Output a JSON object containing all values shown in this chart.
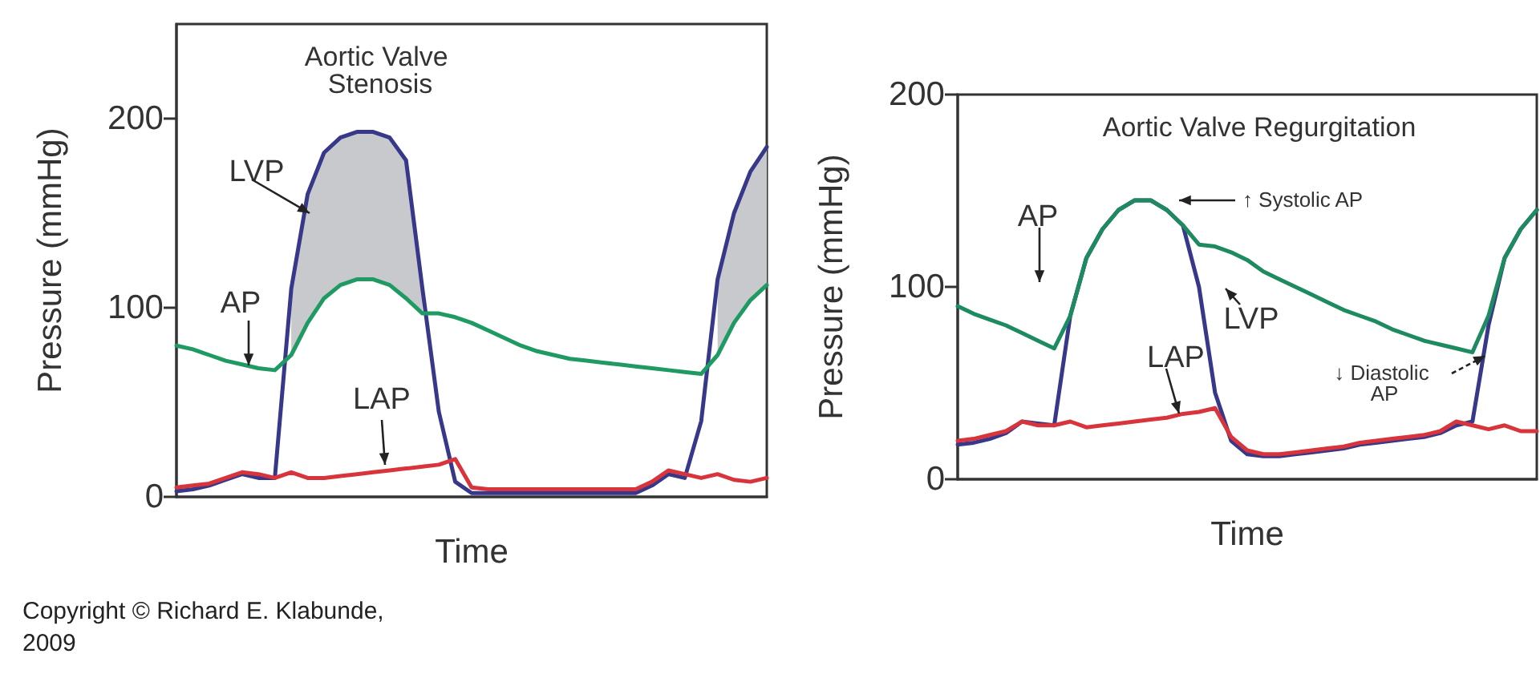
{
  "chart_data": [
    {
      "type": "line",
      "title": "Aortic Valve Stenosis",
      "xlabel": "Time",
      "ylabel": "Pressure (mmHg)",
      "categories": [
        null,
        null,
        null,
        null,
        null,
        null,
        null,
        null,
        null,
        null,
        null,
        null,
        null,
        null,
        null,
        null,
        null,
        null,
        null,
        null,
        null,
        null,
        null,
        null,
        null,
        null,
        null,
        null,
        null,
        null,
        null,
        null,
        null,
        null,
        null,
        null,
        null
      ],
      "ylim": [
        0,
        250
      ],
      "yticks": [
        0,
        100,
        200
      ],
      "tick_labels": "y",
      "series": [
        {
          "name": "LVP",
          "color": "#38388a",
          "values": [
            3,
            4,
            6,
            9,
            12,
            10,
            10,
            110,
            160,
            182,
            190,
            193,
            193,
            190,
            178,
            110,
            45,
            8,
            2,
            2,
            2,
            2,
            2,
            2,
            2,
            2,
            2,
            2,
            2,
            6,
            12,
            10,
            40,
            115,
            150,
            172,
            185
          ],
          "lower": [
            null,
            null,
            null,
            null,
            null,
            null,
            null,
            75,
            92,
            105,
            112,
            115,
            115,
            112,
            105,
            97,
            null,
            null,
            null,
            null,
            null,
            null,
            null,
            null,
            null,
            null,
            null,
            null,
            null,
            null,
            null,
            null,
            null,
            75,
            92,
            104,
            112
          ],
          "upper": [
            null,
            null,
            null,
            null,
            null,
            null,
            null,
            110,
            160,
            182,
            190,
            193,
            193,
            190,
            178,
            110,
            null,
            null,
            null,
            null,
            null,
            null,
            null,
            null,
            null,
            null,
            null,
            null,
            null,
            null,
            null,
            null,
            null,
            115,
            150,
            172,
            185
          ]
        },
        {
          "name": "AP",
          "color": "#1e9a62",
          "values": [
            80,
            78,
            75,
            72,
            70,
            68,
            67,
            75,
            92,
            105,
            112,
            115,
            115,
            112,
            105,
            97,
            97,
            95,
            92,
            88,
            84,
            80,
            77,
            75,
            73,
            72,
            71,
            70,
            69,
            68,
            67,
            66,
            65,
            75,
            92,
            104,
            112
          ]
        },
        {
          "name": "LAP",
          "color": "#d8343c",
          "values": [
            5,
            6,
            7,
            10,
            13,
            12,
            10,
            13,
            10,
            10,
            11,
            12,
            13,
            14,
            15,
            16,
            17,
            20,
            5,
            4,
            4,
            4,
            4,
            4,
            4,
            4,
            4,
            4,
            4,
            8,
            14,
            12,
            10,
            12,
            9,
            8,
            10
          ]
        }
      ],
      "annotations": [
        "Copyright © Richard E. Klabunde, 2009"
      ]
    },
    {
      "type": "line",
      "title": "Aortic Valve Regurgitation",
      "xlabel": "Time",
      "ylabel": "Pressure (mmHg)",
      "categories": [
        null,
        null,
        null,
        null,
        null,
        null,
        null,
        null,
        null,
        null,
        null,
        null,
        null,
        null,
        null,
        null,
        null,
        null,
        null,
        null,
        null,
        null,
        null,
        null,
        null,
        null,
        null,
        null,
        null,
        null,
        null,
        null,
        null,
        null,
        null,
        null,
        null
      ],
      "ylim": [
        0,
        200
      ],
      "yticks": [
        0,
        100,
        200
      ],
      "tick_labels": "y",
      "series": [
        {
          "name": "LVP",
          "color": "#38388a",
          "values": [
            18,
            19,
            21,
            24,
            30,
            29,
            28,
            85,
            115,
            130,
            140,
            145,
            145,
            140,
            132,
            100,
            45,
            20,
            13,
            12,
            12,
            13,
            14,
            15,
            16,
            18,
            19,
            20,
            21,
            22,
            24,
            28,
            30,
            80,
            115,
            130,
            140
          ]
        },
        {
          "name": "AP",
          "color": "#1e8a60",
          "values": [
            90,
            86,
            83,
            80,
            76,
            72,
            68,
            85,
            115,
            130,
            140,
            145,
            145,
            140,
            132,
            122,
            121,
            118,
            114,
            108,
            104,
            100,
            96,
            92,
            88,
            85,
            82,
            78,
            75,
            72,
            70,
            68,
            66,
            85,
            115,
            130,
            140
          ]
        },
        {
          "name": "LAP",
          "color": "#d8343c",
          "values": [
            20,
            21,
            23,
            25,
            30,
            28,
            28,
            30,
            27,
            28,
            29,
            30,
            31,
            32,
            34,
            35,
            37,
            22,
            15,
            13,
            13,
            14,
            15,
            16,
            17,
            19,
            20,
            21,
            22,
            23,
            25,
            30,
            28,
            26,
            28,
            25,
            25
          ]
        }
      ],
      "annotations": [
        "↑ Systolic AP",
        "↓ Diastolic AP"
      ]
    }
  ]
}
